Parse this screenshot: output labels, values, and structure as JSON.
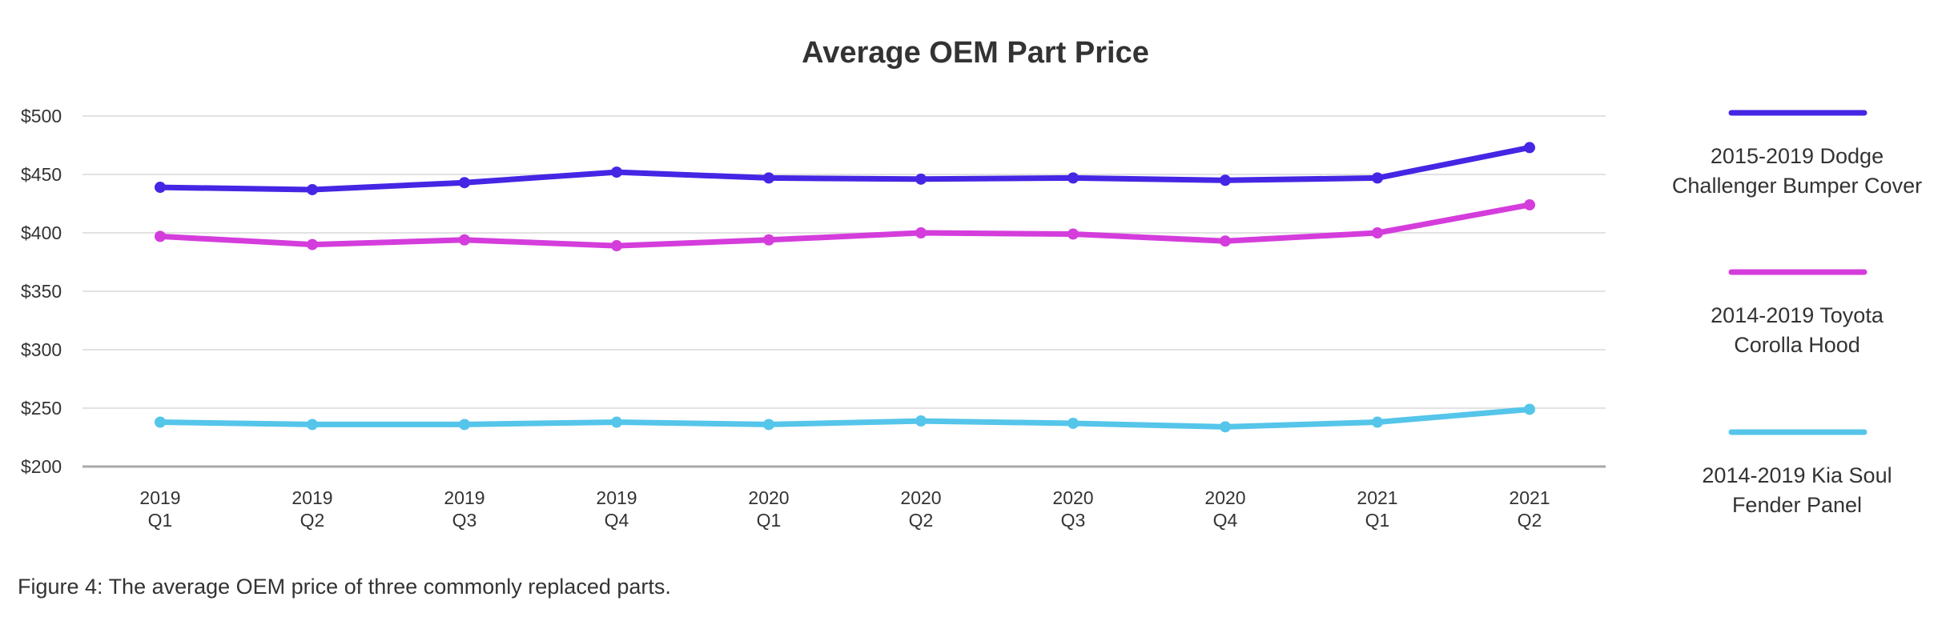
{
  "chart_data": {
    "type": "line",
    "title": "Average OEM Part Price",
    "xlabel": "",
    "ylabel": "",
    "ylim": [
      200,
      500
    ],
    "yticks": [
      {
        "value": 500,
        "label": "$500"
      },
      {
        "value": 450,
        "label": "$450"
      },
      {
        "value": 400,
        "label": "$400"
      },
      {
        "value": 350,
        "label": "$350"
      },
      {
        "value": 300,
        "label": "$300"
      },
      {
        "value": 250,
        "label": "$250"
      },
      {
        "value": 200,
        "label": "$200"
      }
    ],
    "categories": [
      [
        "2019",
        "Q1"
      ],
      [
        "2019",
        "Q2"
      ],
      [
        "2019",
        "Q3"
      ],
      [
        "2019",
        "Q4"
      ],
      [
        "2020",
        "Q1"
      ],
      [
        "2020",
        "Q2"
      ],
      [
        "2020",
        "Q3"
      ],
      [
        "2020",
        "Q4"
      ],
      [
        "2021",
        "Q1"
      ],
      [
        "2021",
        "Q2"
      ]
    ],
    "grid": true,
    "legend_position": "right",
    "series": [
      {
        "name": "2015-2019 Dodge Challenger Bumper Cover",
        "legend_lines": [
          "2015-2019 Dodge",
          "Challenger Bumper Cover"
        ],
        "color": "#4526e4",
        "values": [
          439,
          437,
          443,
          452,
          447,
          446,
          447,
          445,
          447,
          473
        ]
      },
      {
        "name": "2014-2019 Toyota Corolla Hood",
        "legend_lines": [
          "2014-2019 Toyota",
          "Corolla Hood"
        ],
        "color": "#d43ddc",
        "values": [
          397,
          390,
          394,
          389,
          394,
          400,
          399,
          393,
          400,
          424
        ]
      },
      {
        "name": "2014-2019 Kia Soul Fender Panel",
        "legend_lines": [
          "2014-2019 Kia Soul",
          "Fender Panel"
        ],
        "color": "#55c5ea",
        "values": [
          238,
          236,
          236,
          238,
          236,
          239,
          237,
          234,
          238,
          249
        ]
      }
    ]
  },
  "caption": "Figure 4: The average OEM price of three commonly replaced parts.",
  "colors": {
    "grid": "#e2e2e2",
    "axis": "#a8a8a8",
    "text": "#333333"
  }
}
